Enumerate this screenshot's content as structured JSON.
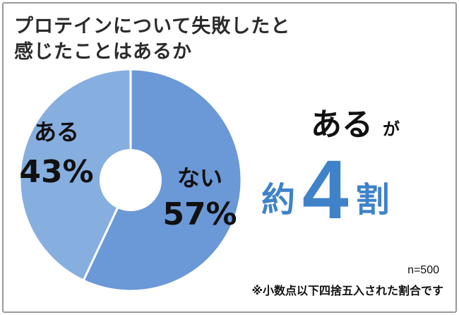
{
  "chart_data": {
    "type": "pie",
    "style": "donut",
    "title_line1": "プロテインについて失敗したと",
    "title_line2": "感じたことはあるか",
    "slices": [
      {
        "label": "ない",
        "value": 57,
        "value_text": "57%",
        "color": "#6b98d6"
      },
      {
        "label": "ある",
        "value": 43,
        "value_text": "43%",
        "color": "#86afe0"
      }
    ],
    "separator_color": "#ffffff",
    "legend": "none"
  },
  "callout": {
    "line1_main": "ある",
    "line1_particle": "が",
    "line2_prefix": "約",
    "line2_number": "4",
    "line2_suffix": "割",
    "number_color": "#3f82c8"
  },
  "footnotes": {
    "sample_size": "n=500",
    "rounding_note": "※小数点以下四捨五入された割合です"
  }
}
